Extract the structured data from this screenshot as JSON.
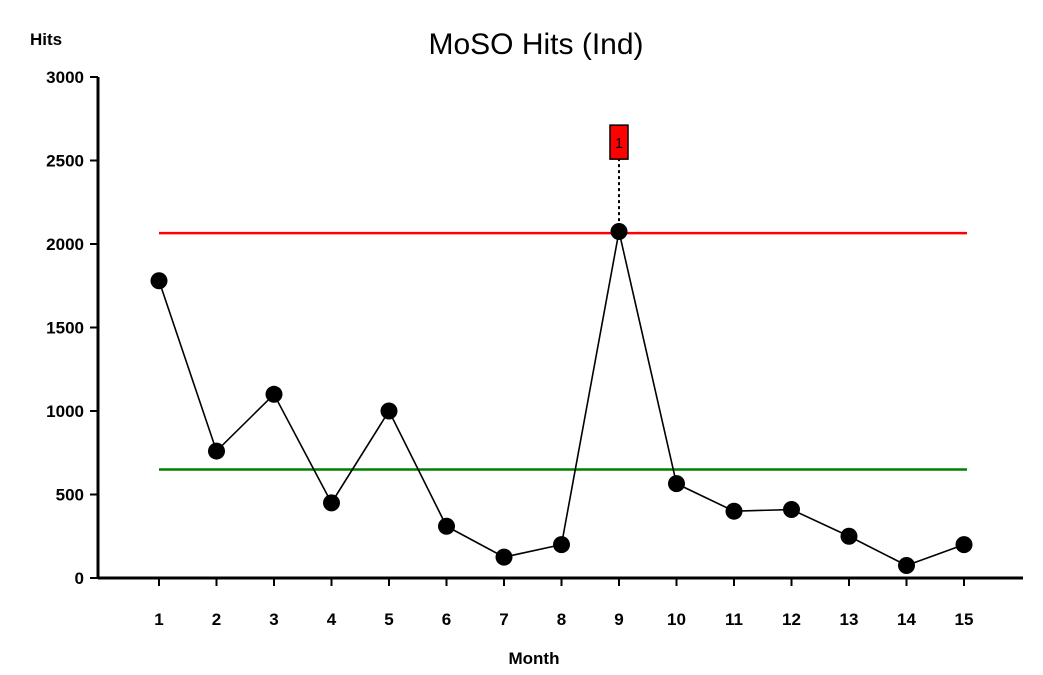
{
  "colors": {
    "background": "#ffffff",
    "axis": "#000000",
    "series_line": "#000000",
    "marker": "#000000",
    "upper_limit": "#ff0000",
    "center_line": "#008000",
    "flag_fill": "#ff0000",
    "flag_border": "#000000"
  },
  "chart_data": {
    "type": "line",
    "title": "MoSO Hits (Ind)",
    "xlabel": "Month",
    "ylabel": "Hits",
    "ylim": [
      0,
      3000
    ],
    "yticks": [
      0,
      500,
      1000,
      1500,
      2000,
      2500,
      3000
    ],
    "x": [
      1,
      2,
      3,
      4,
      5,
      6,
      7,
      8,
      9,
      10,
      11,
      12,
      13,
      14,
      15
    ],
    "series": [
      {
        "values": [
          1780,
          760,
          1100,
          450,
          1000,
          310,
          125,
          200,
          2075,
          565,
          400,
          410,
          250,
          75,
          200
        ]
      }
    ],
    "reference_lines": [
      {
        "kind": "upper_limit",
        "value": 2065,
        "color": "#ff0000"
      },
      {
        "kind": "center_line",
        "value": 650,
        "color": "#008000"
      }
    ],
    "annotations": [
      {
        "x": 9,
        "y_value": 2075,
        "label": "1",
        "label_y_value": 2610
      }
    ],
    "grid": false,
    "legend": "none"
  }
}
